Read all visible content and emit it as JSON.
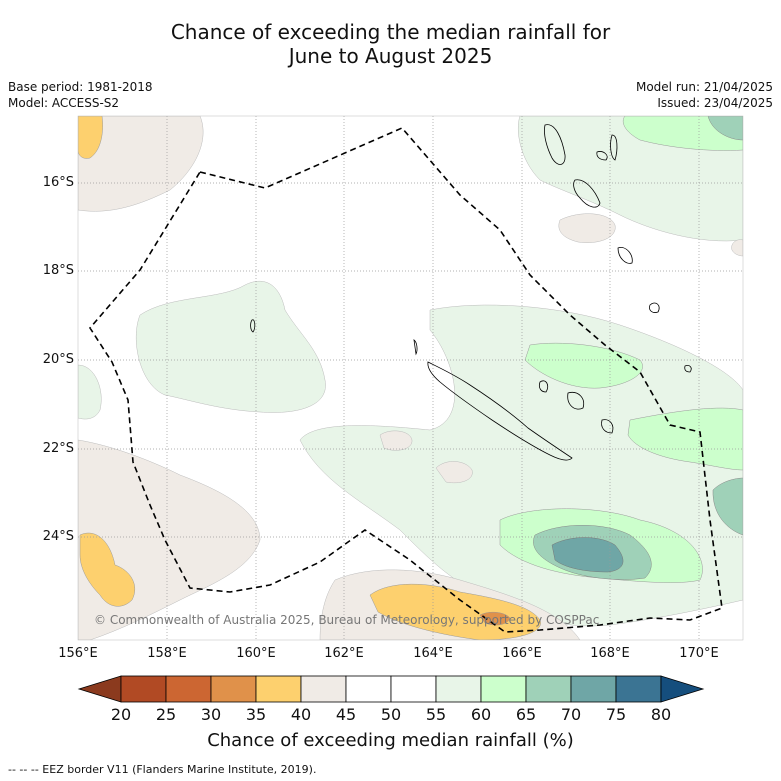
{
  "title_line1": "Chance of exceeding the median rainfall for",
  "title_line2": "June to August 2025",
  "meta_left": {
    "base_period": "Base period: 1981-2018",
    "model": "Model: ACCESS-S2"
  },
  "meta_right": {
    "model_run": "Model run: 21/04/2025",
    "issued": "Issued: 23/04/2025"
  },
  "lat_labels": [
    "16°S",
    "18°S",
    "20°S",
    "22°S",
    "24°S"
  ],
  "lon_labels": [
    "156°E",
    "158°E",
    "160°E",
    "162°E",
    "164°E",
    "166°E",
    "168°E",
    "170°E"
  ],
  "copyright": "© Commonwealth of Australia 2025, Bureau of Meteorology, supported by COSPPac",
  "colorbar": {
    "ticks": [
      "20",
      "25",
      "30",
      "35",
      "40",
      "45",
      "50",
      "55",
      "60",
      "65",
      "70",
      "75",
      "80"
    ],
    "colors": [
      "#8b3a1e",
      "#b14a24",
      "#cc6632",
      "#e0914a",
      "#fdd06e",
      "#f0ebe6",
      "#ffffff",
      "#ffffff",
      "#e8f5e8",
      "#ccffcc",
      "#9fd1b8",
      "#6fa6a6",
      "#3b7493",
      "#154e7d"
    ],
    "label": "Chance of exceeding median rainfall (%)"
  },
  "legend_footer": "-- -- -- EEZ border V11 (Flanders Marine Institute, 2019)."
}
